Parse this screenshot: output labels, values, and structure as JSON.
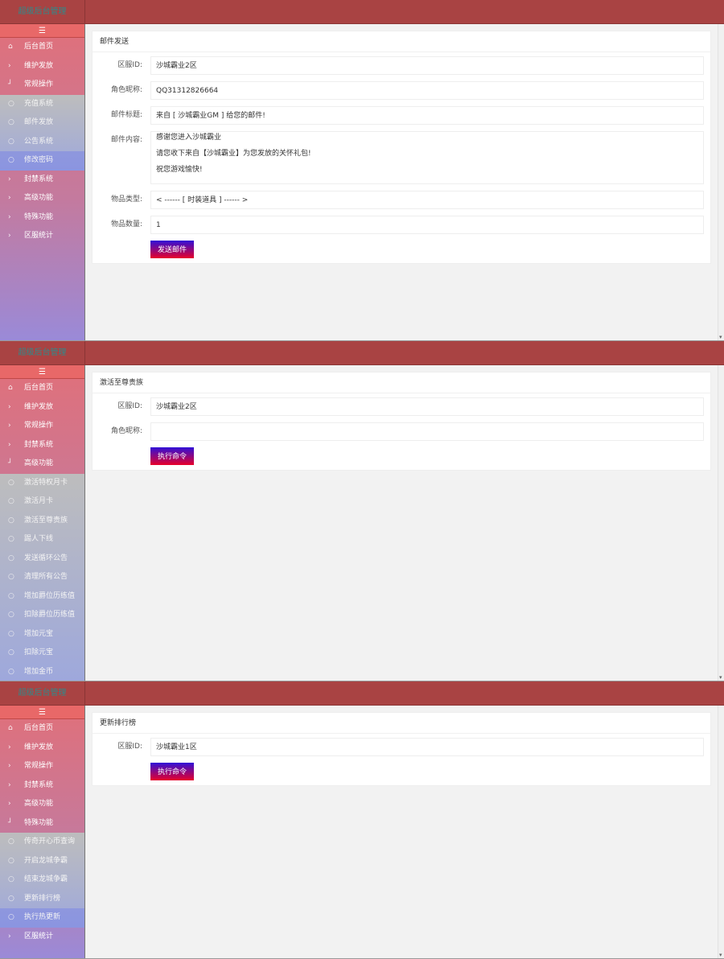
{
  "app": {
    "logo": "超级后台管理",
    "toggle_icon": "☰"
  },
  "colors": {
    "header": "#a94343",
    "button_top": "#3010d8",
    "button_bottom": "#e8002a"
  },
  "panels": [
    {
      "menu": [
        {
          "label": "后台首页",
          "icon": "home"
        },
        {
          "label": "维护发放",
          "icon": "chevron"
        },
        {
          "label": "常规操作",
          "icon": "expanded",
          "children": [
            {
              "label": "充值系统"
            },
            {
              "label": "邮件发放"
            },
            {
              "label": "公告系统"
            },
            {
              "label": "修改密码",
              "active": true
            }
          ]
        },
        {
          "label": "封禁系统",
          "icon": "chevron"
        },
        {
          "label": "高级功能",
          "icon": "chevron"
        },
        {
          "label": "特殊功能",
          "icon": "chevron"
        },
        {
          "label": "区服统计",
          "icon": "chevron"
        }
      ],
      "card_title": "邮件发送",
      "fields": [
        {
          "label": "区服ID:",
          "value": "沙城霸业2区"
        },
        {
          "label": "角色昵称:",
          "value": "QQ31312826664"
        },
        {
          "label": "邮件标题:",
          "value": "来自 [ 沙城霸业GM ] 给您的邮件!"
        },
        {
          "label": "邮件内容:",
          "lines": [
            "感谢您进入沙城霸业",
            "请您收下来自【沙城霸业】为您发放的关怀礼包!",
            "祝您游戏愉快!"
          ]
        },
        {
          "label": "物品类型:",
          "value": "< ------ [ 时装道具 ] ------ >"
        },
        {
          "label": "物品数量:",
          "value": "1"
        }
      ],
      "button": "发送邮件"
    },
    {
      "menu": [
        {
          "label": "后台首页",
          "icon": "home"
        },
        {
          "label": "维护发放",
          "icon": "chevron"
        },
        {
          "label": "常规操作",
          "icon": "chevron"
        },
        {
          "label": "封禁系统",
          "icon": "chevron"
        },
        {
          "label": "高级功能",
          "icon": "expanded",
          "children": [
            {
              "label": "激活特权月卡"
            },
            {
              "label": "激活月卡"
            },
            {
              "label": "激活至尊贵族"
            },
            {
              "label": "踢人下线"
            },
            {
              "label": "发送循环公告"
            },
            {
              "label": "清理所有公告"
            },
            {
              "label": "增加爵位历练值"
            },
            {
              "label": "扣除爵位历练值"
            },
            {
              "label": "增加元宝"
            },
            {
              "label": "扣除元宝"
            },
            {
              "label": "增加金币"
            }
          ]
        }
      ],
      "card_title": "激活至尊贵族",
      "fields": [
        {
          "label": "区服ID:",
          "value": "沙城霸业2区"
        },
        {
          "label": "角色昵称:",
          "value": ""
        }
      ],
      "button": "执行命令"
    },
    {
      "menu": [
        {
          "label": "后台首页",
          "icon": "home"
        },
        {
          "label": "维护发放",
          "icon": "chevron"
        },
        {
          "label": "常规操作",
          "icon": "chevron"
        },
        {
          "label": "封禁系统",
          "icon": "chevron"
        },
        {
          "label": "高级功能",
          "icon": "chevron"
        },
        {
          "label": "特殊功能",
          "icon": "expanded",
          "children": [
            {
              "label": "传奇开心币查询"
            },
            {
              "label": "开启龙城争霸"
            },
            {
              "label": "结束龙城争霸"
            },
            {
              "label": "更新排行榜"
            },
            {
              "label": "执行热更新",
              "active": true
            }
          ]
        },
        {
          "label": "区服统计",
          "icon": "chevron"
        }
      ],
      "card_title": "更新排行榜",
      "fields": [
        {
          "label": "区服ID:",
          "value": "沙城霸业1区"
        }
      ],
      "button": "执行命令"
    }
  ]
}
